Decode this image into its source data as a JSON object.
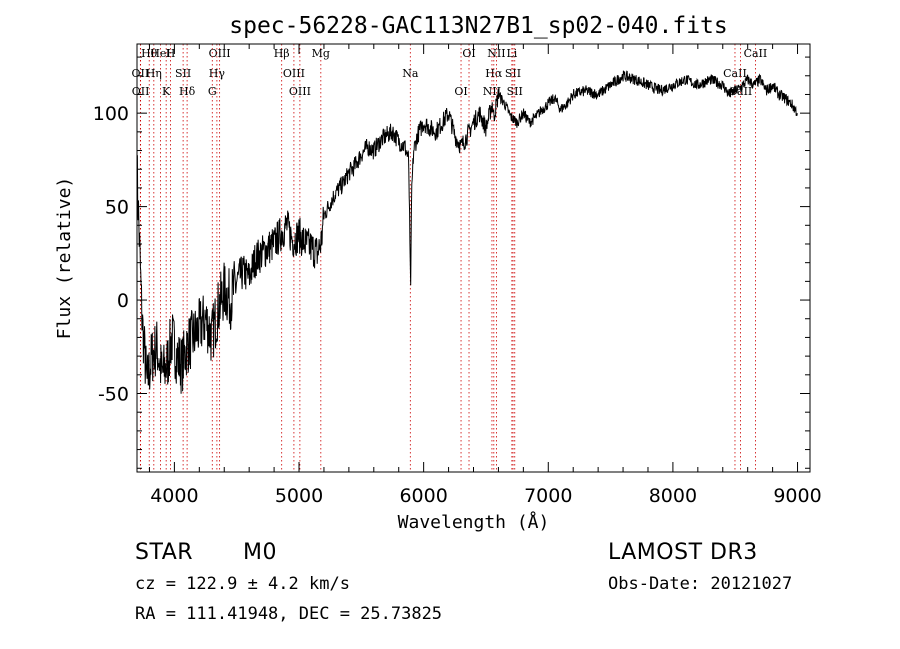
{
  "chart_data": {
    "type": "line",
    "title": "spec-56228-GAC113N27B1_sp02-040.fits",
    "xlabel": "Wavelength (Å)",
    "ylabel": "Flux (relative)",
    "xlim": [
      3700,
      9100
    ],
    "ylim": [
      -92,
      137
    ],
    "xticks": [
      4000,
      5000,
      6000,
      7000,
      8000,
      9000
    ],
    "yticks": [
      -50,
      0,
      50,
      100
    ],
    "series": [
      {
        "name": "flux",
        "x": [
          3700,
          3740,
          3780,
          3820,
          3860,
          3900,
          3940,
          3980,
          4020,
          4060,
          4100,
          4150,
          4200,
          4250,
          4300,
          4350,
          4400,
          4450,
          4500,
          4550,
          4600,
          4650,
          4700,
          4750,
          4800,
          4850,
          4900,
          4950,
          5000,
          5050,
          5100,
          5150,
          5180,
          5200,
          5250,
          5300,
          5350,
          5400,
          5450,
          5500,
          5550,
          5600,
          5650,
          5700,
          5750,
          5800,
          5850,
          5880,
          5895,
          5905,
          5920,
          5950,
          6000,
          6050,
          6100,
          6150,
          6200,
          6250,
          6300,
          6350,
          6400,
          6450,
          6500,
          6550,
          6563,
          6600,
          6650,
          6700,
          6750,
          6800,
          6850,
          6900,
          6950,
          7000,
          7050,
          7100,
          7150,
          7200,
          7300,
          7400,
          7500,
          7600,
          7700,
          7800,
          7900,
          8000,
          8100,
          8200,
          8300,
          8400,
          8450,
          8500,
          8550,
          8600,
          8650,
          8700,
          8750,
          8800,
          8850,
          8900,
          8950,
          9000
        ],
        "y": [
          70,
          -10,
          -45,
          -30,
          -25,
          -40,
          -35,
          -20,
          -30,
          -35,
          -25,
          -20,
          -15,
          -10,
          -20,
          -5,
          5,
          0,
          10,
          15,
          12,
          22,
          25,
          28,
          30,
          35,
          40,
          32,
          35,
          30,
          28,
          25,
          32,
          45,
          52,
          58,
          62,
          68,
          72,
          78,
          82,
          80,
          85,
          88,
          90,
          85,
          82,
          75,
          5,
          60,
          80,
          88,
          95,
          92,
          90,
          95,
          100,
          88,
          82,
          88,
          95,
          100,
          92,
          105,
          98,
          110,
          105,
          98,
          95,
          100,
          95,
          98,
          102,
          105,
          108,
          102,
          105,
          110,
          112,
          110,
          115,
          120,
          118,
          115,
          112,
          115,
          118,
          115,
          118,
          115,
          110,
          112,
          114,
          118,
          115,
          118,
          112,
          115,
          110,
          108,
          105,
          100
        ]
      }
    ],
    "line_marks": [
      {
        "label": "Hθ",
        "wl": 3798
      },
      {
        "label": "OII",
        "wl": 3727
      },
      {
        "label": "OII",
        "wl": 3729
      },
      {
        "label": "HeI",
        "wl": 3889
      },
      {
        "label": "Hη",
        "wl": 3835
      },
      {
        "label": "K",
        "wl": 3934
      },
      {
        "label": "H",
        "wl": 3969
      },
      {
        "label": "SII",
        "wl": 4070
      },
      {
        "label": "Hδ",
        "wl": 4102
      },
      {
        "label": "OIII",
        "wl": 4363
      },
      {
        "label": "Hγ",
        "wl": 4341
      },
      {
        "label": "G",
        "wl": 4304
      },
      {
        "label": "Hβ",
        "wl": 4861
      },
      {
        "label": "OIII",
        "wl": 4959
      },
      {
        "label": "OIII",
        "wl": 5007
      },
      {
        "label": "Mg",
        "wl": 5175
      },
      {
        "label": "Na",
        "wl": 5893
      },
      {
        "label": "OI",
        "wl": 6300
      },
      {
        "label": "OI",
        "wl": 6364
      },
      {
        "label": "Hα",
        "wl": 6563
      },
      {
        "label": "NII",
        "wl": 6548
      },
      {
        "label": "NII",
        "wl": 6584
      },
      {
        "label": "SII",
        "wl": 6717
      },
      {
        "label": "SII",
        "wl": 6731
      },
      {
        "label": "Li",
        "wl": 6708
      },
      {
        "label": "CaII",
        "wl": 8498
      },
      {
        "label": "CaII",
        "wl": 8542
      },
      {
        "label": "CaII",
        "wl": 8662
      }
    ]
  },
  "info": {
    "obj_class": "STAR",
    "subclass": "M0",
    "survey": "LAMOST DR3",
    "cz": "cz = 122.9 ± 4.2 km/s",
    "obs_date": "Obs-Date: 20121027",
    "radec": "RA = 111.41948, DEC =  25.73825"
  }
}
